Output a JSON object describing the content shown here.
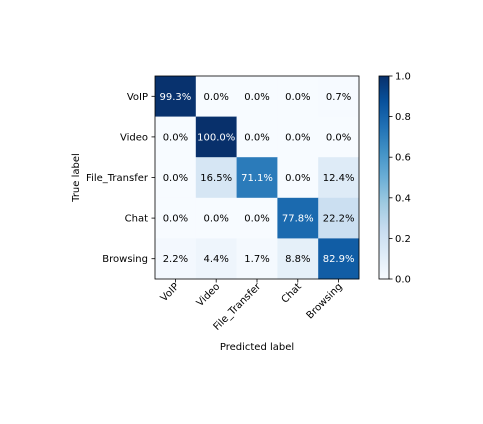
{
  "chart_data": {
    "type": "heatmap",
    "title": "",
    "xlabel": "Predicted label",
    "ylabel": "True label",
    "x_categories": [
      "VoIP",
      "Video",
      "File_Transfer",
      "Chat",
      "Browsing"
    ],
    "y_categories": [
      "VoIP",
      "Video",
      "File_Transfer",
      "Chat",
      "Browsing"
    ],
    "values": [
      [
        0.993,
        0.0,
        0.0,
        0.0,
        0.007
      ],
      [
        0.0,
        1.0,
        0.0,
        0.0,
        0.0
      ],
      [
        0.0,
        0.165,
        0.711,
        0.0,
        0.124
      ],
      [
        0.0,
        0.0,
        0.0,
        0.778,
        0.222
      ],
      [
        0.022,
        0.044,
        0.017,
        0.088,
        0.829
      ]
    ],
    "cell_labels": [
      [
        "99.3%",
        "0.0%",
        "0.0%",
        "0.0%",
        "0.7%"
      ],
      [
        "0.0%",
        "100.0%",
        "0.0%",
        "0.0%",
        "0.0%"
      ],
      [
        "0.0%",
        "16.5%",
        "71.1%",
        "0.0%",
        "12.4%"
      ],
      [
        "0.0%",
        "0.0%",
        "0.0%",
        "77.8%",
        "22.2%"
      ],
      [
        "2.2%",
        "4.4%",
        "1.7%",
        "8.8%",
        "82.9%"
      ]
    ],
    "colormap": "Blues",
    "colorbar": {
      "range": [
        0,
        1
      ],
      "ticks": [
        0,
        0.2,
        0.4,
        0.6,
        0.8,
        1.0
      ],
      "tick_labels": [
        "0.0",
        "0.2",
        "0.4",
        "0.6",
        "0.8",
        "1.0"
      ]
    }
  }
}
